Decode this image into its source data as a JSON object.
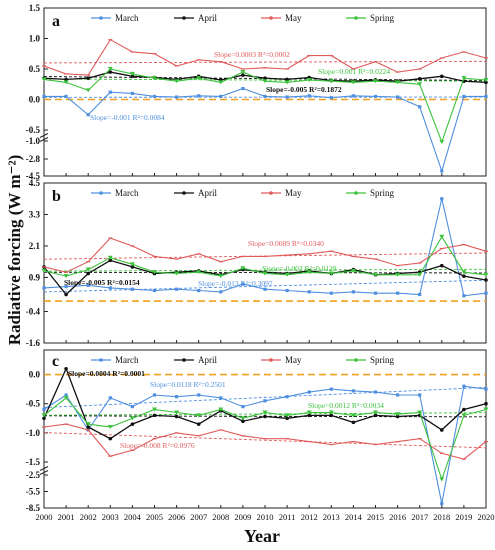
{
  "figure": {
    "ylabel": "Radiative forcing (W m⁻²)",
    "xlabel": "Year",
    "x_ticks": [
      "2000",
      "2001",
      "2002",
      "2003",
      "2004",
      "2005",
      "2006",
      "2007",
      "2008",
      "2009",
      "2010",
      "2011",
      "2012",
      "2013",
      "2014",
      "2015",
      "2016",
      "2017",
      "2018",
      "2019",
      "2020"
    ],
    "legend": [
      "March",
      "April",
      "May",
      "Spring"
    ],
    "colors": {
      "March": "#4f8fe0",
      "April": "#111111",
      "May": "#e05a5a",
      "Spring": "#3cc23c",
      "zero": "#f0a020"
    }
  },
  "chart_data": [
    {
      "type": "line",
      "panel_label": "a",
      "x": [
        2000,
        2001,
        2002,
        2003,
        2004,
        2005,
        2006,
        2007,
        2008,
        2009,
        2010,
        2011,
        2012,
        2013,
        2014,
        2015,
        2016,
        2017,
        2018,
        2019,
        2020
      ],
      "broken_axis": true,
      "upper": {
        "ylim": [
          -0.5,
          1.5
        ],
        "ticks": [
          "1.5",
          "1.0",
          "0.5",
          "0.0",
          "-0.5"
        ]
      },
      "lower": {
        "ylim": [
          -4.5,
          -1.0
        ],
        "ticks": [
          "-1.0",
          "-2.8",
          "-4.5"
        ],
        "note": "compressed axis break"
      },
      "series": [
        {
          "name": "March",
          "values": [
            0.05,
            0.05,
            -0.25,
            0.12,
            0.1,
            0.05,
            0.04,
            0.06,
            0.05,
            0.18,
            0.05,
            0.04,
            0.06,
            0.03,
            0.06,
            0.05,
            0.04,
            -0.12,
            -4.0,
            0.05,
            0.05
          ]
        },
        {
          "name": "April",
          "values": [
            0.35,
            0.33,
            0.35,
            0.45,
            0.38,
            0.36,
            0.33,
            0.38,
            0.32,
            0.4,
            0.35,
            0.33,
            0.36,
            0.31,
            0.3,
            0.32,
            0.3,
            0.34,
            0.38,
            0.3,
            0.28
          ]
        },
        {
          "name": "May",
          "values": [
            0.55,
            0.42,
            0.4,
            0.98,
            0.78,
            0.75,
            0.55,
            0.65,
            0.62,
            0.5,
            0.52,
            0.5,
            0.72,
            0.72,
            0.5,
            0.62,
            0.45,
            0.5,
            0.68,
            0.78,
            0.68
          ]
        },
        {
          "name": "Spring",
          "values": [
            0.33,
            0.28,
            0.15,
            0.5,
            0.42,
            0.35,
            0.3,
            0.35,
            0.28,
            0.45,
            0.3,
            0.28,
            0.32,
            0.3,
            0.28,
            0.3,
            0.28,
            0.25,
            -1.1,
            0.35,
            0.32
          ]
        }
      ],
      "annotations": [
        {
          "text": "Slope=0.0003 R²=0.0002",
          "series": "May"
        },
        {
          "text": "Slope=0.001 R²=0.0224",
          "series": "Spring"
        },
        {
          "text": "Slope=-0.005 R²=0.1872",
          "series": "April"
        },
        {
          "text": "Slope=-0.001 R²=0.0084",
          "series": "March"
        }
      ]
    },
    {
      "type": "line",
      "panel_label": "b",
      "x": [
        2000,
        2001,
        2002,
        2003,
        2004,
        2005,
        2006,
        2007,
        2008,
        2009,
        2010,
        2011,
        2012,
        2013,
        2014,
        2015,
        2016,
        2017,
        2018,
        2019,
        2020
      ],
      "ylim": [
        -1.6,
        4.5
      ],
      "ticks": [
        "4.5",
        "3.3",
        "2.1",
        "0.9",
        "-0.4",
        "-1.6"
      ],
      "series": [
        {
          "name": "March",
          "values": [
            0.5,
            0.55,
            0.6,
            0.5,
            0.45,
            0.4,
            0.45,
            0.4,
            0.35,
            0.65,
            0.45,
            0.4,
            0.35,
            0.3,
            0.35,
            0.3,
            0.3,
            0.25,
            3.9,
            0.2,
            0.3
          ]
        },
        {
          "name": "April",
          "values": [
            1.3,
            0.25,
            1.05,
            1.55,
            1.3,
            1.05,
            1.1,
            1.15,
            1.0,
            1.2,
            1.1,
            1.05,
            1.15,
            1.05,
            1.2,
            1.0,
            1.05,
            1.1,
            1.35,
            0.95,
            0.8
          ]
        },
        {
          "name": "May",
          "values": [
            1.3,
            1.1,
            1.5,
            2.4,
            2.1,
            1.7,
            1.6,
            1.8,
            1.5,
            1.7,
            1.7,
            1.75,
            1.8,
            1.9,
            1.7,
            1.6,
            1.35,
            1.45,
            2.0,
            2.15,
            1.9
          ]
        },
        {
          "name": "Spring",
          "values": [
            1.15,
            0.95,
            1.2,
            1.65,
            1.4,
            1.1,
            1.05,
            1.1,
            0.95,
            1.25,
            1.05,
            1.0,
            1.1,
            1.05,
            1.15,
            1.0,
            1.0,
            1.0,
            2.45,
            1.1,
            1.0
          ]
        }
      ],
      "annotations": [
        {
          "text": "Slope=0.0089 R²=0.0340",
          "series": "May"
        },
        {
          "text": "Slope=-0.003 R²=0.0128",
          "series": "Spring"
        },
        {
          "text": "Slope=-0.005 R²=0.0154",
          "series": "April"
        },
        {
          "text": "Slope=-0.013 R²=0.3097",
          "series": "March"
        }
      ]
    },
    {
      "type": "line",
      "panel_label": "c",
      "x": [
        2000,
        2001,
        2002,
        2003,
        2004,
        2005,
        2006,
        2007,
        2008,
        2009,
        2010,
        2011,
        2012,
        2013,
        2014,
        2015,
        2016,
        2017,
        2018,
        2019,
        2020
      ],
      "broken_axis": true,
      "upper": {
        "ylim": [
          -1.5,
          0.25
        ],
        "ticks": [
          "0.0",
          "-0.5",
          "-1.0",
          "-1.5"
        ]
      },
      "lower": {
        "ylim": [
          -8.5,
          -2.5
        ],
        "ticks": [
          "-2.5",
          "-5.5",
          "-8.5"
        ],
        "note": "compressed axis break"
      },
      "series": [
        {
          "name": "March",
          "values": [
            -0.6,
            -0.35,
            -0.95,
            -0.4,
            -0.55,
            -0.35,
            -0.38,
            -0.35,
            -0.4,
            -0.55,
            -0.45,
            -0.38,
            -0.3,
            -0.25,
            -0.28,
            -0.3,
            -0.35,
            -0.35,
            -7.7,
            -0.2,
            -0.25
          ]
        },
        {
          "name": "April",
          "values": [
            -0.75,
            0.1,
            -0.9,
            -1.1,
            -0.85,
            -0.7,
            -0.72,
            -0.85,
            -0.62,
            -0.8,
            -0.72,
            -0.75,
            -0.7,
            -0.7,
            -0.82,
            -0.7,
            -0.72,
            -0.7,
            -0.95,
            -0.6,
            -0.5
          ]
        },
        {
          "name": "May",
          "values": [
            -0.9,
            -0.85,
            -0.95,
            -1.4,
            -1.3,
            -1.1,
            -1.0,
            -1.05,
            -0.95,
            -1.05,
            -1.1,
            -1.1,
            -1.15,
            -1.2,
            -1.15,
            -1.2,
            -1.15,
            -1.1,
            -1.35,
            -1.45,
            -1.15
          ]
        },
        {
          "name": "Spring",
          "values": [
            -0.7,
            -0.4,
            -0.85,
            -0.9,
            -0.75,
            -0.6,
            -0.65,
            -0.7,
            -0.6,
            -0.75,
            -0.65,
            -0.7,
            -0.65,
            -0.65,
            -0.7,
            -0.65,
            -0.68,
            -0.65,
            -3.3,
            -0.7,
            -0.6
          ]
        }
      ],
      "annotations": [
        {
          "text": "Slope=0.0004 R²=0.0001",
          "series": "April"
        },
        {
          "text": "Slope=0.0118 R²=0.2501",
          "series": "March"
        },
        {
          "text": "Slope=0.0012 R²=0.0034",
          "series": "Spring"
        },
        {
          "text": "Slope=-0.008 R²=0.0976",
          "series": "May"
        }
      ]
    }
  ]
}
